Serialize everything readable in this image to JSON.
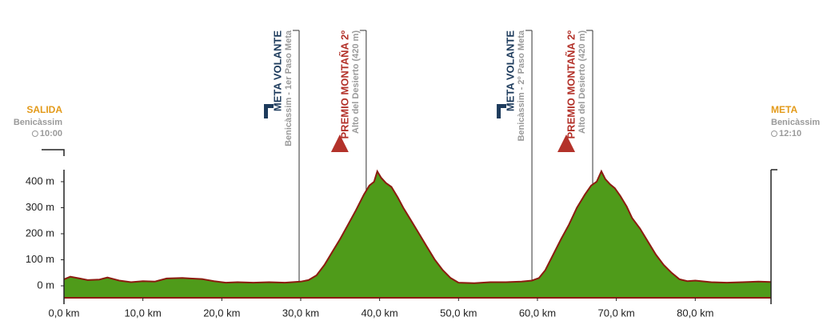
{
  "chart_data": {
    "type": "area",
    "x": [
      0,
      0.8,
      2,
      3,
      4.5,
      5.5,
      7,
      8.5,
      10,
      11.5,
      12,
      13,
      15,
      16,
      17.5,
      19,
      20.5,
      22,
      24,
      26,
      28,
      30,
      31,
      32,
      33,
      34,
      35,
      36,
      37,
      38,
      38.7,
      39.3,
      39.7,
      40.2,
      40.8,
      41.5,
      42.3,
      43,
      44,
      45,
      46,
      47,
      48,
      49,
      50,
      52,
      54,
      56,
      58,
      59.3,
      60.2,
      61,
      62,
      63,
      64,
      65,
      66,
      66.8,
      67.5,
      68.1,
      68.6,
      69.2,
      69.8,
      70.5,
      71.3,
      72,
      73,
      74,
      75,
      76,
      77,
      78,
      79,
      80,
      82,
      84,
      86,
      88,
      89.6
    ],
    "values": [
      25,
      35,
      28,
      22,
      24,
      32,
      20,
      14,
      18,
      16,
      20,
      28,
      30,
      28,
      26,
      18,
      12,
      14,
      12,
      14,
      12,
      16,
      22,
      40,
      80,
      130,
      180,
      235,
      290,
      350,
      385,
      400,
      440,
      415,
      395,
      380,
      340,
      300,
      250,
      200,
      150,
      100,
      60,
      30,
      12,
      10,
      14,
      14,
      16,
      20,
      30,
      60,
      120,
      180,
      235,
      300,
      350,
      385,
      400,
      440,
      410,
      390,
      375,
      345,
      305,
      260,
      220,
      170,
      120,
      80,
      50,
      25,
      18,
      20,
      14,
      12,
      14,
      16,
      15
    ],
    "fill": "#4f9b1a",
    "line_color": "#8c1b10",
    "xlim": [
      0,
      89.6
    ],
    "ylim": [
      -46,
      446
    ],
    "xticks": [
      {
        "value": 0,
        "label": "0,0 km"
      },
      {
        "value": 10,
        "label": "10,0 km"
      },
      {
        "value": 20,
        "label": "20,0 km"
      },
      {
        "value": 30,
        "label": "30,0 km"
      },
      {
        "value": 40,
        "label": "40,0 km"
      },
      {
        "value": 50,
        "label": "50,0 km"
      },
      {
        "value": 60,
        "label": "60,0 km"
      },
      {
        "value": 70,
        "label": "70,0 km"
      },
      {
        "value": 80,
        "label": "80,0 km"
      }
    ],
    "yticks": [
      {
        "value": 0,
        "label": "0 m"
      },
      {
        "value": 100,
        "label": "100 m"
      },
      {
        "value": 200,
        "label": "200 m"
      },
      {
        "value": 300,
        "label": "300 m"
      },
      {
        "value": 400,
        "label": "400 m"
      }
    ],
    "start": {
      "title": "SALIDA",
      "place": "Benicàssim",
      "time": "10:00"
    },
    "finish": {
      "title": "META",
      "place": "Benicàssim",
      "time": "12:10"
    },
    "annotations": [
      {
        "x": 29.8,
        "title": "META VOLANTE",
        "subtitle": "Benicàssim - 1er Paso Meta",
        "marker": "flag",
        "color": "#1d3b5c"
      },
      {
        "x": 38.3,
        "title": "PREMIO MONTAÑA 2º",
        "subtitle": "Alto del Desierto (420 m)",
        "marker": "triangle",
        "color": "#b3322a"
      },
      {
        "x": 59.3,
        "title": "META VOLANTE",
        "subtitle": "Benicàssim - 2º Paso Meta",
        "marker": "flag",
        "color": "#1d3b5c"
      },
      {
        "x": 67.0,
        "title": "PREMIO MONTAÑA 2º",
        "subtitle": "Alto del Desierto (420 m)",
        "marker": "triangle",
        "color": "#b3322a"
      }
    ]
  }
}
